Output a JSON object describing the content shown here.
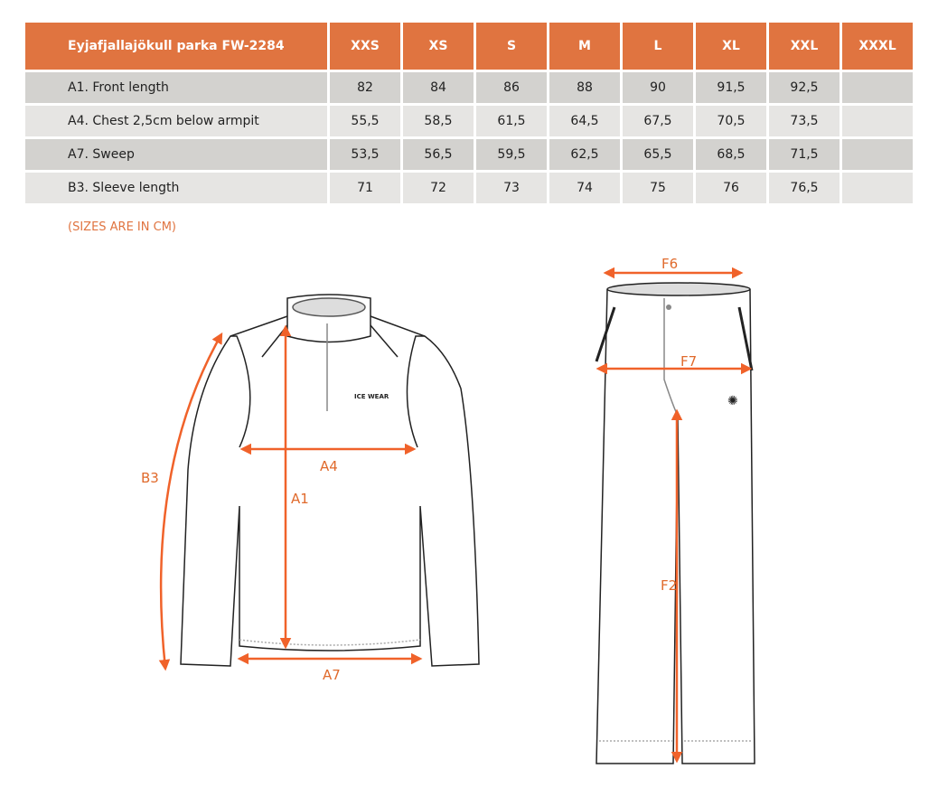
{
  "table": {
    "title": "Eyjafjallajökull parka FW-2284",
    "sizes": [
      "XXS",
      "XS",
      "S",
      "M",
      "L",
      "XL",
      "XXL",
      "XXXL"
    ],
    "rows": [
      {
        "label": "A1. Front length",
        "values": [
          "82",
          "84",
          "86",
          "88",
          "90",
          "91,5",
          "92,5",
          ""
        ]
      },
      {
        "label": "A4. Chest 2,5cm below armpit",
        "values": [
          "55,5",
          "58,5",
          "61,5",
          "64,5",
          "67,5",
          "70,5",
          "73,5",
          ""
        ]
      },
      {
        "label": "A7. Sweep",
        "values": [
          "53,5",
          "56,5",
          "59,5",
          "62,5",
          "65,5",
          "68,5",
          "71,5",
          ""
        ]
      },
      {
        "label": "B3. Sleeve length",
        "values": [
          "71",
          "72",
          "73",
          "74",
          "75",
          "76",
          "76,5",
          ""
        ]
      }
    ]
  },
  "note": "(SIZES ARE IN CM)",
  "jacket_labels": {
    "b3": "B3",
    "a1": "A1",
    "a4": "A4",
    "a7": "A7",
    "logo": "ICE WEAR"
  },
  "pants_labels": {
    "f6": "F6",
    "f7": "F7",
    "f2": "F2"
  },
  "colors": {
    "header": "#e07440",
    "arrow": "#f0622a",
    "row_dark": "#d3d2cf",
    "row_light": "#e6e5e3"
  }
}
